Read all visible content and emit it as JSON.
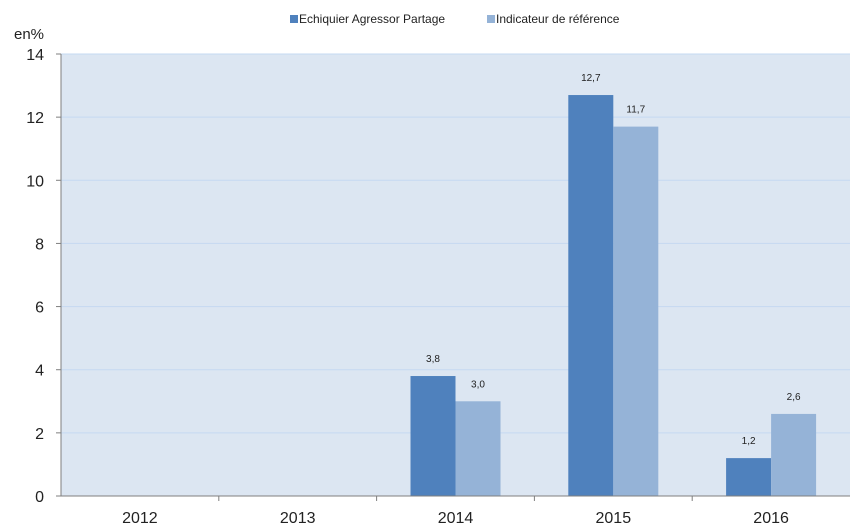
{
  "chart_data": {
    "type": "bar",
    "categories": [
      "2012",
      "2013",
      "2014",
      "2015",
      "2016"
    ],
    "series": [
      {
        "name": "Echiquier Agressor Partage",
        "values": [
          null,
          null,
          3.8,
          12.7,
          1.2
        ],
        "labels": [
          "",
          "",
          "3,8",
          "12,7",
          "1,2"
        ],
        "color": "#4f81bd"
      },
      {
        "name": "Indicateur de référence",
        "values": [
          null,
          null,
          3.0,
          11.7,
          2.6
        ],
        "labels": [
          "",
          "",
          "3,0",
          "11,7",
          "2,6"
        ],
        "color": "#95b3d7"
      }
    ],
    "ylabel": "en%",
    "ylim": [
      0,
      14
    ],
    "yticks": [
      0,
      2,
      4,
      6,
      8,
      10,
      12,
      14
    ],
    "grid": true,
    "legend_position": "top-center",
    "plot_background": "#dce6f2",
    "grid_color": "#c5d9f1"
  }
}
